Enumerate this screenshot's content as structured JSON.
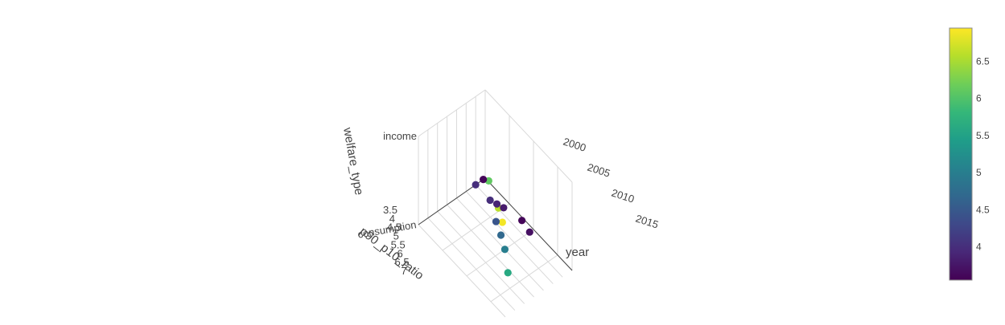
{
  "chart_data": {
    "type": "scatter",
    "subtype": "scatter3d",
    "title": "",
    "axes": {
      "x": {
        "title": "year",
        "ticks": [
          "2000",
          "2005",
          "2010",
          "2015"
        ]
      },
      "y": {
        "title": "p90_p10_ratio",
        "ticks": [
          "3.5",
          "4",
          "4.5",
          "5",
          "5.5",
          "6",
          "6.5",
          "7"
        ]
      },
      "z": {
        "title": "welfare_type",
        "ticks": [
          "consumption",
          "income"
        ]
      }
    },
    "colorbar": {
      "colorscale": "viridis",
      "range": [
        3.55,
        6.95
      ],
      "ticks": [
        "4",
        "4.5",
        "5",
        "5.5",
        "6",
        "6.5"
      ]
    },
    "points": [
      {
        "year": 2011,
        "p90_p10_ratio": 6.1,
        "welfare_type": "income",
        "color_value": 6.1
      },
      {
        "year": 2015,
        "p90_p10_ratio": 6.6,
        "welfare_type": "income",
        "color_value": 6.6
      },
      {
        "year": 2017,
        "p90_p10_ratio": 6.9,
        "welfare_type": "income",
        "color_value": 6.9
      },
      {
        "year": 2000,
        "p90_p10_ratio": 3.6,
        "welfare_type": "consumption",
        "color_value": 3.6
      },
      {
        "year": 2004,
        "p90_p10_ratio": 3.9,
        "welfare_type": "consumption",
        "color_value": 3.9
      },
      {
        "year": 2005,
        "p90_p10_ratio": 3.8,
        "welfare_type": "consumption",
        "color_value": 3.8
      },
      {
        "year": 2008,
        "p90_p10_ratio": 3.6,
        "welfare_type": "consumption",
        "color_value": 3.6
      },
      {
        "year": 2010,
        "p90_p10_ratio": 3.7,
        "welfare_type": "consumption",
        "color_value": 3.7
      },
      {
        "year": 2000,
        "p90_p10_ratio": 4.0,
        "welfare_type": "consumption",
        "color_value": 4.0
      },
      {
        "year": 2003,
        "p90_p10_ratio": 4.0,
        "welfare_type": "consumption",
        "color_value": 4.0
      },
      {
        "year": 2006,
        "p90_p10_ratio": 4.45,
        "welfare_type": "consumption",
        "color_value": 4.45
      },
      {
        "year": 2008,
        "p90_p10_ratio": 4.7,
        "welfare_type": "consumption",
        "color_value": 4.7
      },
      {
        "year": 2010,
        "p90_p10_ratio": 5.0,
        "welfare_type": "consumption",
        "color_value": 5.0
      },
      {
        "year": 2013,
        "p90_p10_ratio": 5.6,
        "welfare_type": "consumption",
        "color_value": 5.6
      }
    ]
  }
}
